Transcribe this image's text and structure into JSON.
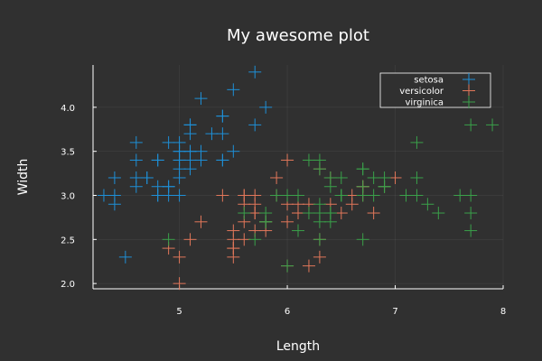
{
  "chart_data": {
    "type": "scatter",
    "title": "My awesome plot",
    "xlabel": "Length",
    "ylabel": "Width",
    "xlim": [
      4.2,
      8.0
    ],
    "ylim": [
      1.94,
      4.48
    ],
    "xticks": [
      5,
      6,
      7,
      8
    ],
    "yticks": [
      2.0,
      2.5,
      3.0,
      3.5,
      4.0
    ],
    "ytick_labels": [
      "2.0",
      "2.5",
      "3.0",
      "3.5",
      "4.0"
    ],
    "grid": true,
    "legend_position": "top-right",
    "marker": "cross",
    "series": [
      {
        "name": "setosa",
        "color": "#1e90d8",
        "points": [
          [
            5.1,
            3.5
          ],
          [
            4.9,
            3.0
          ],
          [
            4.7,
            3.2
          ],
          [
            4.6,
            3.1
          ],
          [
            5.0,
            3.6
          ],
          [
            5.4,
            3.9
          ],
          [
            4.6,
            3.4
          ],
          [
            5.0,
            3.4
          ],
          [
            4.4,
            2.9
          ],
          [
            4.9,
            3.1
          ],
          [
            5.4,
            3.7
          ],
          [
            4.8,
            3.4
          ],
          [
            4.8,
            3.0
          ],
          [
            4.3,
            3.0
          ],
          [
            5.8,
            4.0
          ],
          [
            5.7,
            4.4
          ],
          [
            5.4,
            3.9
          ],
          [
            5.1,
            3.5
          ],
          [
            5.7,
            3.8
          ],
          [
            5.1,
            3.8
          ],
          [
            5.4,
            3.4
          ],
          [
            5.1,
            3.7
          ],
          [
            4.6,
            3.6
          ],
          [
            5.1,
            3.3
          ],
          [
            4.8,
            3.4
          ],
          [
            5.0,
            3.0
          ],
          [
            5.0,
            3.4
          ],
          [
            5.2,
            3.5
          ],
          [
            5.2,
            3.4
          ],
          [
            4.7,
            3.2
          ],
          [
            4.8,
            3.1
          ],
          [
            5.4,
            3.4
          ],
          [
            5.2,
            4.1
          ],
          [
            5.5,
            4.2
          ],
          [
            4.9,
            3.1
          ],
          [
            5.0,
            3.2
          ],
          [
            5.5,
            3.5
          ],
          [
            4.9,
            3.6
          ],
          [
            4.4,
            3.0
          ],
          [
            5.1,
            3.4
          ],
          [
            5.0,
            3.5
          ],
          [
            4.5,
            2.3
          ],
          [
            4.4,
            3.2
          ],
          [
            5.0,
            3.5
          ],
          [
            5.1,
            3.8
          ],
          [
            4.8,
            3.0
          ],
          [
            5.1,
            3.8
          ],
          [
            4.6,
            3.2
          ],
          [
            5.3,
            3.7
          ],
          [
            5.0,
            3.3
          ]
        ]
      },
      {
        "name": "versicolor",
        "color": "#e2775a",
        "points": [
          [
            7.0,
            3.2
          ],
          [
            6.4,
            3.2
          ],
          [
            6.9,
            3.1
          ],
          [
            5.5,
            2.3
          ],
          [
            6.5,
            2.8
          ],
          [
            5.7,
            2.8
          ],
          [
            6.3,
            3.3
          ],
          [
            4.9,
            2.4
          ],
          [
            6.6,
            2.9
          ],
          [
            5.2,
            2.7
          ],
          [
            5.0,
            2.0
          ],
          [
            5.9,
            3.0
          ],
          [
            6.0,
            2.2
          ],
          [
            6.1,
            2.9
          ],
          [
            5.6,
            2.9
          ],
          [
            6.7,
            3.1
          ],
          [
            5.6,
            3.0
          ],
          [
            5.8,
            2.7
          ],
          [
            6.2,
            2.2
          ],
          [
            5.6,
            2.5
          ],
          [
            5.9,
            3.2
          ],
          [
            6.1,
            2.8
          ],
          [
            6.3,
            2.5
          ],
          [
            6.1,
            2.8
          ],
          [
            6.4,
            2.9
          ],
          [
            6.6,
            3.0
          ],
          [
            6.8,
            2.8
          ],
          [
            6.7,
            3.0
          ],
          [
            6.0,
            2.9
          ],
          [
            5.7,
            2.6
          ],
          [
            5.5,
            2.4
          ],
          [
            5.5,
            2.4
          ],
          [
            5.8,
            2.7
          ],
          [
            6.0,
            2.7
          ],
          [
            5.4,
            3.0
          ],
          [
            6.0,
            3.4
          ],
          [
            6.7,
            3.1
          ],
          [
            6.3,
            2.3
          ],
          [
            5.6,
            3.0
          ],
          [
            5.5,
            2.5
          ],
          [
            5.5,
            2.6
          ],
          [
            6.1,
            3.0
          ],
          [
            5.8,
            2.6
          ],
          [
            5.0,
            2.3
          ],
          [
            5.6,
            2.7
          ],
          [
            5.7,
            3.0
          ],
          [
            5.7,
            2.9
          ],
          [
            6.2,
            2.9
          ],
          [
            5.1,
            2.5
          ],
          [
            5.7,
            2.8
          ]
        ]
      },
      {
        "name": "virginica",
        "color": "#3aa14a",
        "points": [
          [
            6.3,
            3.3
          ],
          [
            5.8,
            2.7
          ],
          [
            7.1,
            3.0
          ],
          [
            6.3,
            2.9
          ],
          [
            6.5,
            3.0
          ],
          [
            7.6,
            3.0
          ],
          [
            4.9,
            2.5
          ],
          [
            7.3,
            2.9
          ],
          [
            6.7,
            2.5
          ],
          [
            7.2,
            3.6
          ],
          [
            6.5,
            3.2
          ],
          [
            6.4,
            2.7
          ],
          [
            6.8,
            3.0
          ],
          [
            5.7,
            2.5
          ],
          [
            5.8,
            2.8
          ],
          [
            6.4,
            3.2
          ],
          [
            6.5,
            3.0
          ],
          [
            7.7,
            3.8
          ],
          [
            7.7,
            2.6
          ],
          [
            6.0,
            2.2
          ],
          [
            6.9,
            3.2
          ],
          [
            5.6,
            2.8
          ],
          [
            7.7,
            2.8
          ],
          [
            6.3,
            2.7
          ],
          [
            6.7,
            3.3
          ],
          [
            7.2,
            3.2
          ],
          [
            6.2,
            2.8
          ],
          [
            6.1,
            3.0
          ],
          [
            6.4,
            2.8
          ],
          [
            7.2,
            3.0
          ],
          [
            7.4,
            2.8
          ],
          [
            7.9,
            3.8
          ],
          [
            6.4,
            2.8
          ],
          [
            6.3,
            2.8
          ],
          [
            6.1,
            2.6
          ],
          [
            7.7,
            3.0
          ],
          [
            6.3,
            3.4
          ],
          [
            6.4,
            3.1
          ],
          [
            6.0,
            3.0
          ],
          [
            6.9,
            3.1
          ],
          [
            6.7,
            3.1
          ],
          [
            6.9,
            3.1
          ],
          [
            5.8,
            2.7
          ],
          [
            6.8,
            3.2
          ],
          [
            6.7,
            3.3
          ],
          [
            6.7,
            3.0
          ],
          [
            6.3,
            2.5
          ],
          [
            6.5,
            3.0
          ],
          [
            6.2,
            3.4
          ],
          [
            5.9,
            3.0
          ]
        ]
      }
    ]
  }
}
